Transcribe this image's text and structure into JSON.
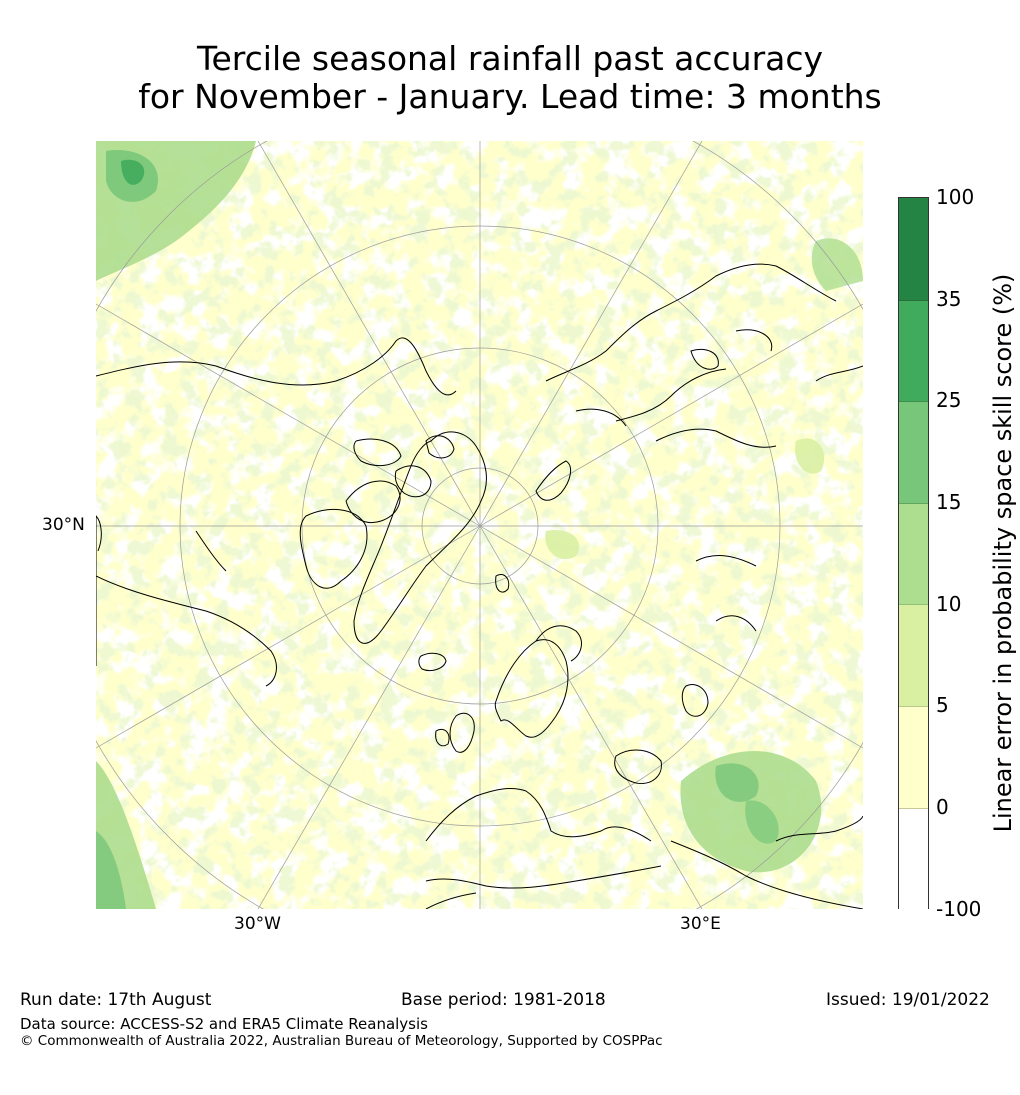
{
  "title": {
    "line1": "Tercile seasonal rainfall past accuracy",
    "line2": "for November - January. Lead time: 3 months"
  },
  "map": {
    "lat_label": "30°N",
    "lon_labels": {
      "west": "30°W",
      "east": "30°E"
    },
    "colors": {
      "land_line": "#000000",
      "graticule": "#9a9a9a"
    }
  },
  "colorbar": {
    "title": "Linear error in probability space skill score (%)",
    "ticks": [
      "-100",
      "0",
      "5",
      "10",
      "15",
      "25",
      "35",
      "100"
    ],
    "bins": [
      {
        "range": "-100 to 0",
        "color": "#ffffff"
      },
      {
        "range": "0 to 5",
        "color": "#ffffcc"
      },
      {
        "range": "5 to 10",
        "color": "#d9f0a3"
      },
      {
        "range": "10 to 15",
        "color": "#addd8e"
      },
      {
        "range": "15 to 25",
        "color": "#78c679"
      },
      {
        "range": "25 to 35",
        "color": "#41ab5d"
      },
      {
        "range": "35 to 100",
        "color": "#238443"
      }
    ]
  },
  "footer": {
    "run_date": "Run date: 17th August",
    "base_period": "Base period: 1981-2018",
    "issued": "Issued: 19/01/2022",
    "data_source": "Data source: ACCESS-S2 and ERA5 Climate Reanalysis",
    "copyright": "© Commonwealth of Australia 2022, Australian Bureau of Meteorology, Supported by COSPPac"
  }
}
